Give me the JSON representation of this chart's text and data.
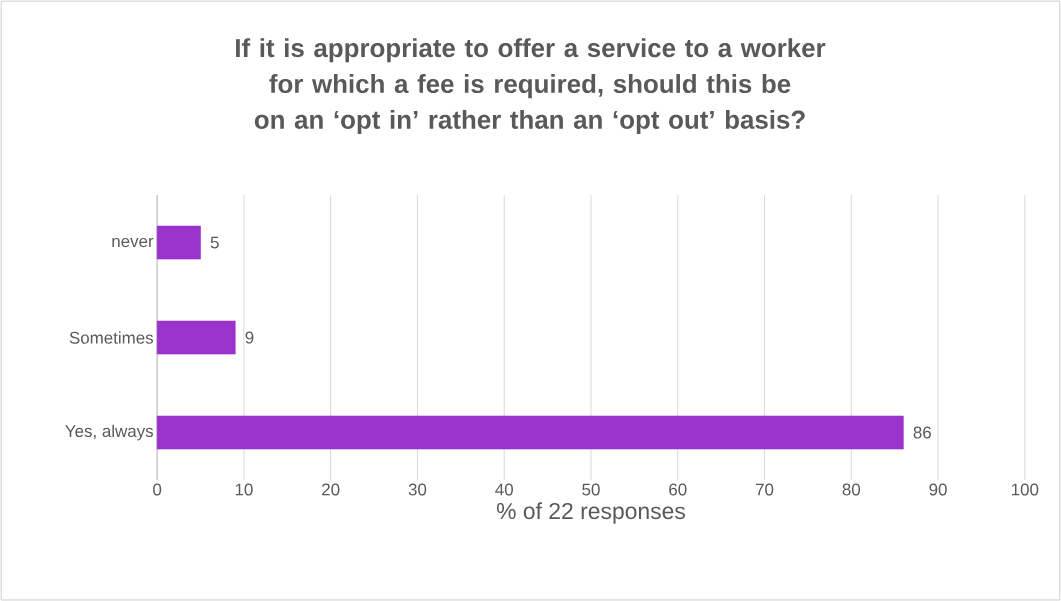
{
  "chart_data": {
    "type": "bar",
    "orientation": "horizontal",
    "title": "If it is appropriate to offer a service to a worker for which a fee is required, should this be on an ‘opt in’ rather than an ‘opt out’ basis?",
    "xlabel": "% of 22 responses",
    "categories": [
      "never",
      "Sometimes",
      "Yes, always"
    ],
    "values": [
      5,
      9,
      86
    ],
    "color": "#9933cc",
    "xlim": [
      0,
      100
    ],
    "xticks": [
      0,
      10,
      20,
      30,
      40,
      50,
      60,
      70,
      80,
      90,
      100
    ],
    "grid": "x",
    "data_labels": true
  }
}
